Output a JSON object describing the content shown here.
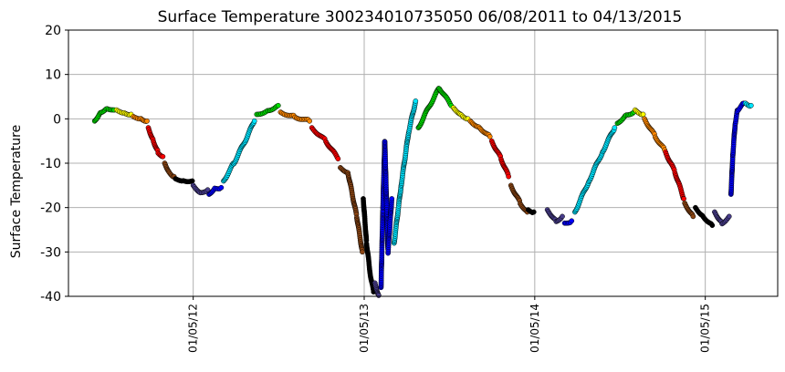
{
  "chart_data": {
    "type": "scatter",
    "title": "Surface Temperature 300234010735050  06/08/2011 to 04/13/2015",
    "xlabel": "",
    "ylabel": "Surface Temperature",
    "ylim": [
      -40,
      20
    ],
    "yticks": [
      -40,
      -30,
      -20,
      -10,
      0,
      10,
      20
    ],
    "xlim": [
      "2011-04-13",
      "2015-06-09"
    ],
    "xticks": [
      {
        "date": "2012-01-05",
        "label": "01/05/12"
      },
      {
        "date": "2013-01-05",
        "label": "01/05/13"
      },
      {
        "date": "2014-01-05",
        "label": "01/05/14"
      },
      {
        "date": "2015-01-05",
        "label": "01/05/15"
      }
    ],
    "grid": true,
    "series": [
      {
        "color": "#00dd00",
        "points": [
          [
            "2011-06-08",
            -0.5
          ],
          [
            "2011-06-20",
            1.5
          ],
          [
            "2011-07-05",
            2.5
          ],
          [
            "2011-07-20",
            2.0
          ]
        ]
      },
      {
        "color": "#ffff00",
        "points": [
          [
            "2011-07-25",
            2.0
          ],
          [
            "2011-08-10",
            1.5
          ],
          [
            "2011-08-25",
            1.0
          ]
        ]
      },
      {
        "color": "#ff8800",
        "points": [
          [
            "2011-08-30",
            0.5
          ],
          [
            "2011-09-15",
            0.2
          ],
          [
            "2011-09-28",
            -0.5
          ]
        ]
      },
      {
        "color": "#ff0000",
        "points": [
          [
            "2011-10-01",
            -2.0
          ],
          [
            "2011-10-12",
            -5.0
          ],
          [
            "2011-10-22",
            -7.5
          ],
          [
            "2011-11-01",
            -8.5
          ]
        ]
      },
      {
        "color": "#8b4513",
        "points": [
          [
            "2011-11-05",
            -10.0
          ],
          [
            "2011-11-15",
            -12.0
          ],
          [
            "2011-11-25",
            -13.0
          ]
        ]
      },
      {
        "color": "#000000",
        "points": [
          [
            "2011-11-28",
            -13.5
          ],
          [
            "2011-12-15",
            -13.8
          ],
          [
            "2012-01-03",
            -14.0
          ]
        ]
      },
      {
        "color": "#483d8b",
        "points": [
          [
            "2012-01-05",
            -15.0
          ],
          [
            "2012-01-20",
            -16.5
          ],
          [
            "2012-02-05",
            -16.0
          ]
        ]
      },
      {
        "color": "#0000ff",
        "points": [
          [
            "2012-02-08",
            -17.0
          ],
          [
            "2012-02-20",
            -15.5
          ],
          [
            "2012-03-05",
            -15.5
          ]
        ]
      },
      {
        "color": "#00e5ff",
        "points": [
          [
            "2012-03-10",
            -14.0
          ],
          [
            "2012-04-01",
            -10.0
          ],
          [
            "2012-04-25",
            -5.0
          ],
          [
            "2012-05-15",
            -0.5
          ]
        ]
      },
      {
        "color": "#00dd00",
        "points": [
          [
            "2012-05-20",
            1.0
          ],
          [
            "2012-06-15",
            2.0
          ],
          [
            "2012-07-05",
            3.0
          ]
        ]
      },
      {
        "color": "#ff8800",
        "points": [
          [
            "2012-07-10",
            1.5
          ],
          [
            "2012-08-10",
            0.5
          ],
          [
            "2012-09-10",
            -0.5
          ]
        ]
      },
      {
        "color": "#ff0000",
        "points": [
          [
            "2012-09-15",
            -2.0
          ],
          [
            "2012-10-15",
            -5.0
          ],
          [
            "2012-11-10",
            -9.0
          ]
        ]
      },
      {
        "color": "#8b4513",
        "points": [
          [
            "2012-11-15",
            -11.0
          ],
          [
            "2012-12-01",
            -12.0
          ],
          [
            "2012-12-20",
            -22.0
          ],
          [
            "2013-01-01",
            -30.0
          ]
        ]
      },
      {
        "color": "#000000",
        "points": [
          [
            "2013-01-03",
            -18.0
          ],
          [
            "2013-01-10",
            -28.0
          ],
          [
            "2013-01-18",
            -35.0
          ],
          [
            "2013-01-25",
            -39.0
          ]
        ]
      },
      {
        "color": "#483d8b",
        "points": [
          [
            "2013-01-28",
            -37.0
          ],
          [
            "2013-02-05",
            -40.0
          ]
        ]
      },
      {
        "color": "#0000ff",
        "points": [
          [
            "2013-02-10",
            -38.0
          ],
          [
            "2013-02-14",
            -20.0
          ],
          [
            "2013-02-18",
            -5.0
          ],
          [
            "2013-02-25",
            -30.0
          ],
          [
            "2013-03-05",
            -18.0
          ]
        ]
      },
      {
        "color": "#00e5ff",
        "points": [
          [
            "2013-03-10",
            -28.0
          ],
          [
            "2013-03-25",
            -15.0
          ],
          [
            "2013-04-10",
            -3.0
          ],
          [
            "2013-04-25",
            4.0
          ]
        ]
      },
      {
        "color": "#00dd00",
        "points": [
          [
            "2013-05-01",
            -2.0
          ],
          [
            "2013-05-25",
            3.0
          ],
          [
            "2013-06-15",
            7.0
          ],
          [
            "2013-07-10",
            3.0
          ]
        ]
      },
      {
        "color": "#ffff00",
        "points": [
          [
            "2013-07-15",
            2.5
          ],
          [
            "2013-08-01",
            1.0
          ],
          [
            "2013-08-15",
            0.0
          ]
        ]
      },
      {
        "color": "#ff8800",
        "points": [
          [
            "2013-08-20",
            -0.5
          ],
          [
            "2013-09-10",
            -2.0
          ],
          [
            "2013-10-01",
            -4.0
          ]
        ]
      },
      {
        "color": "#ff0000",
        "points": [
          [
            "2013-10-05",
            -5.0
          ],
          [
            "2013-10-25",
            -9.0
          ],
          [
            "2013-11-10",
            -13.0
          ]
        ]
      },
      {
        "color": "#8b4513",
        "points": [
          [
            "2013-11-15",
            -15.0
          ],
          [
            "2013-12-05",
            -19.0
          ],
          [
            "2013-12-20",
            -21.0
          ]
        ]
      },
      {
        "color": "#000000",
        "points": [
          [
            "2013-12-22",
            -20.5
          ],
          [
            "2014-01-03",
            -21.0
          ]
        ]
      },
      {
        "color": "#483d8b",
        "points": [
          [
            "2014-02-01",
            -20.5
          ],
          [
            "2014-02-20",
            -23.0
          ],
          [
            "2014-03-05",
            -22.0
          ]
        ]
      },
      {
        "color": "#0000ff",
        "points": [
          [
            "2014-03-10",
            -23.5
          ],
          [
            "2014-03-25",
            -23.0
          ]
        ]
      },
      {
        "color": "#00e5ff",
        "points": [
          [
            "2014-04-01",
            -21.0
          ],
          [
            "2014-05-01",
            -14.0
          ],
          [
            "2014-06-01",
            -7.0
          ],
          [
            "2014-06-25",
            -2.0
          ]
        ]
      },
      {
        "color": "#00dd00",
        "points": [
          [
            "2014-07-01",
            -1.0
          ],
          [
            "2014-07-20",
            1.0
          ],
          [
            "2014-08-05",
            1.5
          ]
        ]
      },
      {
        "color": "#ffff00",
        "points": [
          [
            "2014-08-08",
            2.0
          ],
          [
            "2014-08-25",
            1.0
          ]
        ]
      },
      {
        "color": "#ff8800",
        "points": [
          [
            "2014-08-28",
            0.0
          ],
          [
            "2014-09-20",
            -4.0
          ],
          [
            "2014-10-10",
            -7.0
          ]
        ]
      },
      {
        "color": "#ff0000",
        "points": [
          [
            "2014-10-12",
            -7.5
          ],
          [
            "2014-11-01",
            -12.0
          ],
          [
            "2014-11-20",
            -18.0
          ]
        ]
      },
      {
        "color": "#8b4513",
        "points": [
          [
            "2014-11-22",
            -19.0
          ],
          [
            "2014-12-10",
            -22.0
          ]
        ]
      },
      {
        "color": "#000000",
        "points": [
          [
            "2014-12-15",
            -20.0
          ],
          [
            "2015-01-01",
            -22.0
          ],
          [
            "2015-01-20",
            -24.0
          ]
        ]
      },
      {
        "color": "#483d8b",
        "points": [
          [
            "2015-01-25",
            -21.0
          ],
          [
            "2015-02-10",
            -23.5
          ],
          [
            "2015-02-25",
            -22.0
          ]
        ]
      },
      {
        "color": "#0000ff",
        "points": [
          [
            "2015-03-01",
            -17.0
          ],
          [
            "2015-03-05",
            -8.0
          ],
          [
            "2015-03-10",
            -1.0
          ],
          [
            "2015-03-15",
            2.0
          ],
          [
            "2015-03-28",
            3.5
          ]
        ]
      },
      {
        "color": "#00e5ff",
        "points": [
          [
            "2015-04-01",
            3.5
          ],
          [
            "2015-04-13",
            3.0
          ]
        ]
      }
    ]
  }
}
